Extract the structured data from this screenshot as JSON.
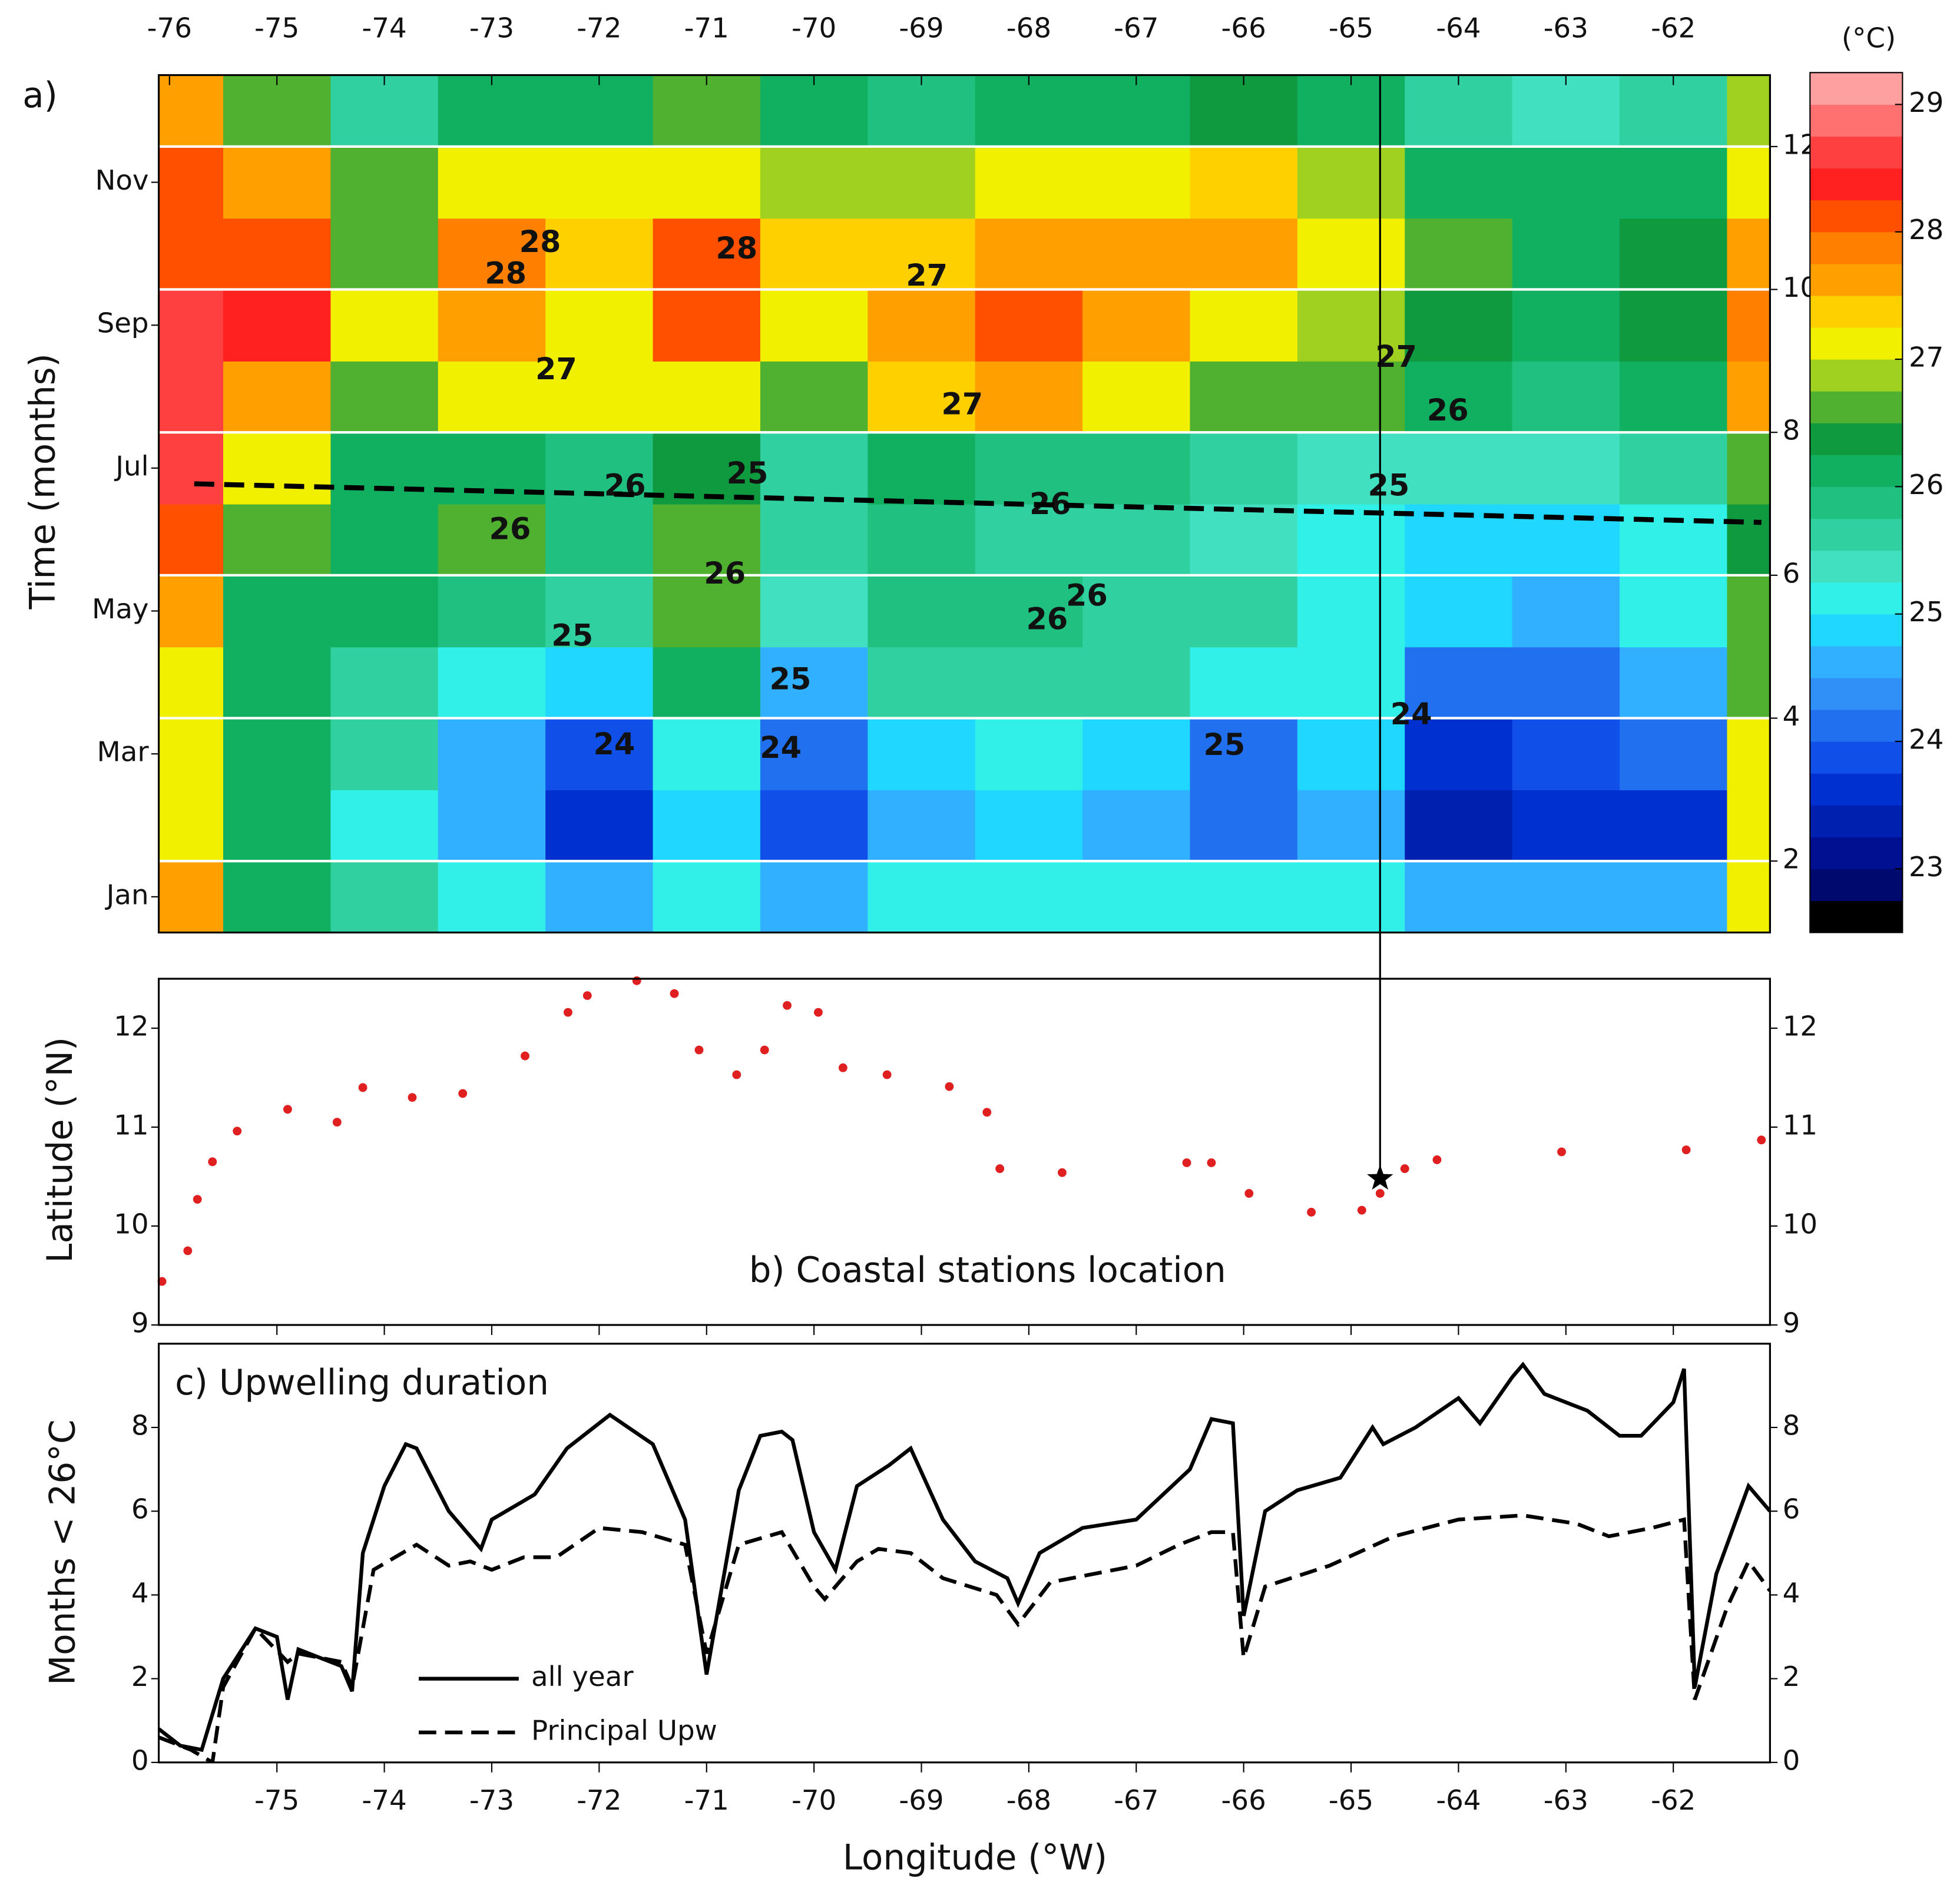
{
  "chart_data": [
    {
      "type": "heatmap",
      "panel_label": "a)",
      "ylabel": "Time (months)",
      "x": [
        -76,
        -75,
        -74,
        -73,
        -72,
        -71,
        -70,
        -69,
        -68,
        -67,
        -66,
        -65,
        -64,
        -63,
        -62,
        -61
      ],
      "y": [
        1.5,
        2.5,
        3.5,
        4.5,
        5.5,
        6.5,
        7.5,
        8.5,
        9.5,
        10.5,
        11.5,
        12.5
      ],
      "z": [
        [
          27.5,
          26,
          25.5,
          25,
          24.5,
          25,
          24.5,
          25,
          25,
          25,
          25,
          25,
          24.5,
          24.5,
          24.5,
          27
        ],
        [
          27,
          26,
          25,
          24.5,
          23.5,
          24.8,
          23.8,
          24.5,
          24.8,
          24.5,
          24,
          24.5,
          23.3,
          23.5,
          23.5,
          27
        ],
        [
          27,
          26,
          25.5,
          24.5,
          23.8,
          25,
          24,
          24.8,
          25,
          24.8,
          24.2,
          24.8,
          23.5,
          23.8,
          24,
          27
        ],
        [
          27,
          26,
          25.7,
          25,
          24.8,
          26,
          24.5,
          25.5,
          25.5,
          25.5,
          25,
          25,
          24.2,
          24,
          24.5,
          26.5
        ],
        [
          27.5,
          26,
          26,
          25.8,
          25.5,
          26.5,
          25.3,
          25.8,
          25.8,
          25.5,
          25.5,
          25.2,
          24.8,
          24.6,
          25,
          26.5
        ],
        [
          28,
          26.5,
          26,
          26.5,
          25.8,
          26.5,
          25.5,
          25.8,
          25.5,
          25.5,
          25.3,
          25,
          24.9,
          24.9,
          25,
          26.3
        ],
        [
          28.5,
          27,
          26,
          26.2,
          25.8,
          26.3,
          25.5,
          26,
          25.8,
          25.8,
          25.6,
          25.3,
          25.3,
          25.3,
          25.5,
          26.5
        ],
        [
          28.5,
          27.5,
          26.5,
          27,
          27,
          27,
          26.5,
          27.3,
          27.5,
          27.2,
          26.5,
          26.7,
          26,
          25.8,
          26,
          27.5
        ],
        [
          28.5,
          28.3,
          27,
          27.5,
          27.2,
          28,
          27,
          27.7,
          28,
          27.5,
          27,
          26.8,
          26.3,
          26,
          26.3,
          27.8
        ],
        [
          28,
          28,
          26.5,
          27.8,
          27.3,
          28,
          27.3,
          27.3,
          27.5,
          27.5,
          27.5,
          27,
          26.5,
          26.2,
          26.3,
          27.5
        ],
        [
          28,
          27.5,
          26.5,
          27,
          27,
          27.2,
          26.8,
          26.8,
          27,
          27,
          27.3,
          26.8,
          26.2,
          26,
          26,
          27
        ],
        [
          27.5,
          26.5,
          25.5,
          26,
          26,
          26.5,
          26,
          25.8,
          26,
          26,
          26.3,
          26,
          25.5,
          25.3,
          25.5,
          26.8
        ]
      ],
      "xlim": [
        -76.1,
        -61.1
      ],
      "ylim": [
        1,
        13
      ],
      "y2lim": [
        1,
        13
      ],
      "xticks": [
        -76,
        -75,
        -74,
        -73,
        -72,
        -71,
        -70,
        -69,
        -68,
        -67,
        -66,
        -65,
        -64,
        -63,
        -62
      ],
      "yticks": [
        {
          "value": 1.5,
          "label": "Jan"
        },
        {
          "value": 3.5,
          "label": "Mar"
        },
        {
          "value": 5.5,
          "label": "May"
        },
        {
          "value": 7.5,
          "label": "Jul"
        },
        {
          "value": 9.5,
          "label": "Sep"
        },
        {
          "value": 11.5,
          "label": "Nov"
        }
      ],
      "y2ticks": [
        2,
        4,
        6,
        8,
        10,
        12
      ],
      "grid": true,
      "colorbar": {
        "title": "(°C)",
        "lim": [
          22.5,
          29.25
        ],
        "ticks": [
          23,
          24,
          25,
          26,
          27,
          28,
          29
        ],
        "colors": [
          "#000000",
          "#000a6e",
          "#001090",
          "#0020b0",
          "#0030d0",
          "#1050e8",
          "#2070f0",
          "#3090f8",
          "#30b0ff",
          "#20d8ff",
          "#30f0e8",
          "#40e0c0",
          "#30d0a0",
          "#20c080",
          "#10b060",
          "#109a40",
          "#50b030",
          "#a0d020",
          "#f0f000",
          "#ffd000",
          "#ffa000",
          "#ff8000",
          "#ff5000",
          "#ff2020",
          "#ff4040",
          "#ff7070",
          "#ffa0a0"
        ]
      },
      "contour_labels": [
        {
          "text": "28",
          "x": -72.55,
          "y": 10.64
        },
        {
          "text": "28",
          "x": -72.87,
          "y": 10.2
        },
        {
          "text": "28",
          "x": -70.72,
          "y": 10.55
        },
        {
          "text": "27",
          "x": -68.95,
          "y": 10.17
        },
        {
          "text": "27",
          "x": -72.4,
          "y": 8.86
        },
        {
          "text": "27",
          "x": -68.62,
          "y": 8.37
        },
        {
          "text": "27",
          "x": -64.58,
          "y": 9.03
        },
        {
          "text": "26",
          "x": -64.1,
          "y": 8.28
        },
        {
          "text": "25",
          "x": -64.65,
          "y": 7.23
        },
        {
          "text": "26",
          "x": -67.8,
          "y": 6.97
        },
        {
          "text": "26",
          "x": -72.83,
          "y": 6.62
        },
        {
          "text": "26",
          "x": -71.76,
          "y": 7.23
        },
        {
          "text": "25",
          "x": -70.62,
          "y": 7.4
        },
        {
          "text": "26",
          "x": -70.83,
          "y": 6.0
        },
        {
          "text": "26",
          "x": -67.46,
          "y": 5.69
        },
        {
          "text": "26",
          "x": -67.83,
          "y": 5.36
        },
        {
          "text": "25",
          "x": -72.25,
          "y": 5.13
        },
        {
          "text": "25",
          "x": -70.22,
          "y": 4.52
        },
        {
          "text": "24",
          "x": -71.86,
          "y": 3.61
        },
        {
          "text": "24",
          "x": -70.31,
          "y": 3.56
        },
        {
          "text": "25",
          "x": -66.18,
          "y": 3.6
        },
        {
          "text": "24",
          "x": -64.44,
          "y": 4.03
        }
      ],
      "trend": {
        "x": [
          -75.77,
          -61.18
        ],
        "y": [
          7.28,
          6.74
        ]
      },
      "marker_lon": -64.73
    },
    {
      "type": "scatter",
      "title": "b) Coastal stations location",
      "ylabel": "Latitude (°N)",
      "color": "#e02020",
      "x": [
        -76.07,
        -75.83,
        -75.74,
        -75.6,
        -75.37,
        -74.9,
        -74.44,
        -74.2,
        -73.74,
        -73.27,
        -72.69,
        -72.29,
        -72.11,
        -71.65,
        -71.3,
        -71.07,
        -70.72,
        -70.46,
        -70.25,
        -69.96,
        -69.73,
        -69.32,
        -68.74,
        -68.39,
        -68.27,
        -67.69,
        -66.53,
        -66.3,
        -65.95,
        -65.37,
        -64.9,
        -64.73,
        -64.5,
        -64.2,
        -63.04,
        -61.88,
        -61.18
      ],
      "y": [
        9.44,
        9.75,
        10.27,
        10.65,
        10.96,
        11.18,
        11.05,
        11.4,
        11.3,
        11.34,
        11.72,
        12.16,
        12.33,
        12.48,
        12.35,
        11.78,
        11.53,
        11.78,
        12.23,
        12.16,
        11.6,
        11.53,
        11.41,
        11.15,
        10.58,
        10.54,
        10.64,
        10.64,
        10.33,
        10.14,
        10.16,
        10.33,
        10.58,
        10.67,
        10.75,
        10.77,
        10.87
      ],
      "xlim": [
        -76.1,
        -61.1
      ],
      "ylim": [
        9,
        12.5
      ],
      "yticks": [
        9,
        10,
        11,
        12
      ],
      "xticks": [
        -75,
        -74,
        -73,
        -72,
        -71,
        -70,
        -69,
        -68,
        -67,
        -66,
        -65,
        -64,
        -63,
        -62
      ],
      "marker": {
        "x": -64.73,
        "y": 10.48
      }
    },
    {
      "type": "line",
      "title": "c) Upwelling duration",
      "xlabel": "Longitude (°W)",
      "ylabel": "Months < 26°C",
      "xlim": [
        -76.1,
        -61.1
      ],
      "ylim": [
        0,
        10
      ],
      "xticks": [
        -75,
        -74,
        -73,
        -72,
        -71,
        -70,
        -69,
        -68,
        -67,
        -66,
        -65,
        -64,
        -63,
        -62
      ],
      "yticks": [
        0,
        2,
        4,
        6,
        8
      ],
      "legend": "lower left",
      "series": [
        {
          "name": "all year",
          "color": "#000000",
          "dash": false,
          "x": [
            -76.1,
            -75.9,
            -75.7,
            -75.5,
            -75.2,
            -75.0,
            -74.9,
            -74.8,
            -74.4,
            -74.3,
            -74.2,
            -74.0,
            -73.8,
            -73.7,
            -73.4,
            -73.1,
            -73.0,
            -72.6,
            -72.3,
            -71.9,
            -71.5,
            -71.2,
            -71.0,
            -70.7,
            -70.5,
            -70.3,
            -70.2,
            -70.0,
            -69.8,
            -69.6,
            -69.3,
            -69.1,
            -68.8,
            -68.5,
            -68.2,
            -68.1,
            -67.9,
            -67.5,
            -67.0,
            -66.5,
            -66.3,
            -66.1,
            -66.0,
            -65.8,
            -65.5,
            -65.1,
            -64.8,
            -64.7,
            -64.4,
            -64.0,
            -63.8,
            -63.5,
            -63.4,
            -63.2,
            -62.8,
            -62.5,
            -62.3,
            -62.0,
            -61.9,
            -61.8,
            -61.6,
            -61.3,
            -61.1
          ],
          "values": [
            0.8,
            0.4,
            0.3,
            2.0,
            3.2,
            3.0,
            1.5,
            2.7,
            2.3,
            1.7,
            5,
            6.6,
            7.6,
            7.5,
            6,
            5.1,
            5.8,
            6.4,
            7.5,
            8.3,
            7.6,
            5.8,
            2.1,
            6.5,
            7.8,
            7.9,
            7.7,
            5.5,
            4.6,
            6.6,
            7.1,
            7.5,
            5.8,
            4.8,
            4.4,
            3.8,
            5.0,
            5.6,
            5.8,
            7.0,
            8.2,
            8.1,
            3.5,
            6.0,
            6.5,
            6.8,
            8.0,
            7.6,
            8.0,
            8.7,
            8.1,
            9.2,
            9.5,
            8.8,
            8.4,
            7.8,
            7.8,
            8.6,
            9.4,
            1.8,
            4.5,
            6.6,
            6.0
          ]
        },
        {
          "name": "Principal Upw",
          "color": "#000000",
          "dash": true,
          "x": [
            -76.1,
            -75.8,
            -75.6,
            -75.5,
            -75.2,
            -74.9,
            -74.8,
            -74.4,
            -74.3,
            -74.1,
            -73.7,
            -73.4,
            -73.2,
            -73.0,
            -72.7,
            -72.4,
            -72.0,
            -71.6,
            -71.2,
            -71.0,
            -70.7,
            -70.3,
            -70.0,
            -69.9,
            -69.6,
            -69.4,
            -69.1,
            -68.8,
            -68.3,
            -68.1,
            -67.8,
            -67.0,
            -66.6,
            -66.3,
            -66.1,
            -66.0,
            -65.8,
            -65.2,
            -64.6,
            -64.0,
            -63.4,
            -62.9,
            -62.6,
            -62.2,
            -61.9,
            -61.8,
            -61.5,
            -61.3,
            -61.1
          ],
          "values": [
            0.6,
            0.3,
            0.0,
            1.8,
            3.2,
            2.4,
            2.6,
            2.4,
            1.8,
            4.6,
            5.2,
            4.7,
            4.8,
            4.6,
            4.9,
            4.9,
            5.6,
            5.5,
            5.2,
            2.6,
            5.2,
            5.5,
            4.2,
            3.9,
            4.8,
            5.1,
            5.0,
            4.4,
            4.0,
            3.3,
            4.3,
            4.7,
            5.2,
            5.5,
            5.5,
            2.5,
            4.2,
            4.7,
            5.4,
            5.8,
            5.9,
            5.7,
            5.4,
            5.6,
            5.8,
            1.5,
            3.7,
            4.8,
            4.1
          ]
        }
      ]
    }
  ]
}
